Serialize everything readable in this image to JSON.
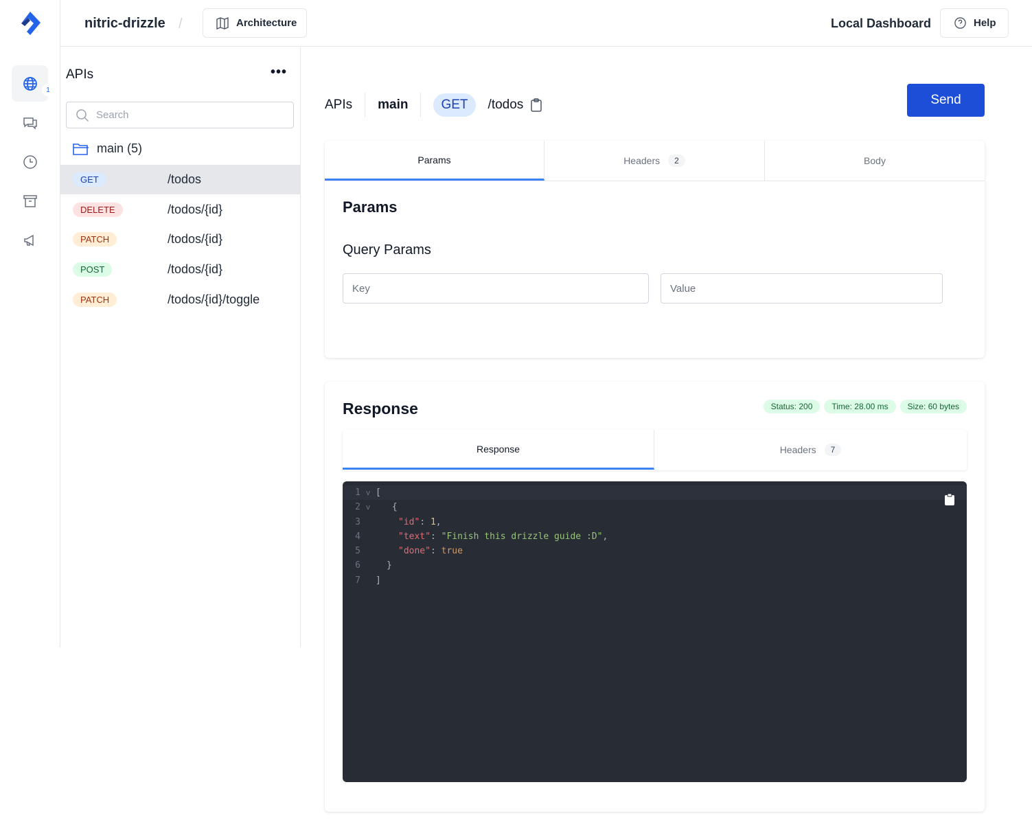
{
  "header": {
    "project": "nitric-drizzle",
    "separator": "/",
    "architecture_label": "Architecture",
    "local_dashboard": "Local Dashboard",
    "help_label": "Help"
  },
  "rail": {
    "items": [
      {
        "icon": "globe-icon",
        "badge": "1",
        "active": true
      },
      {
        "icon": "chat-icon"
      },
      {
        "icon": "clock-icon"
      },
      {
        "icon": "archive-icon"
      },
      {
        "icon": "megaphone-icon"
      }
    ]
  },
  "sidebar": {
    "title": "APIs",
    "search_placeholder": "Search",
    "group": "main (5)",
    "routes": [
      {
        "method": "GET",
        "path": "/todos",
        "bg": "#dbeafe",
        "fg": "#1e40af",
        "selected": true
      },
      {
        "method": "DELETE",
        "path": "/todos/{id}",
        "bg": "#fee2e2",
        "fg": "#991b1b"
      },
      {
        "method": "PATCH",
        "path": "/todos/{id}",
        "bg": "#ffedd5",
        "fg": "#9a3412"
      },
      {
        "method": "POST",
        "path": "/todos/{id}",
        "bg": "#dcfce7",
        "fg": "#166534"
      },
      {
        "method": "PATCH",
        "path": "/todos/{id}/toggle",
        "bg": "#ffedd5",
        "fg": "#9a3412"
      }
    ]
  },
  "request": {
    "crumb_apis": "APIs",
    "crumb_api": "main",
    "method": "GET",
    "path": "/todos",
    "send_label": "Send",
    "tabs": [
      {
        "label": "Params"
      },
      {
        "label": "Headers",
        "count": "2"
      },
      {
        "label": "Body"
      }
    ],
    "params_title": "Params",
    "query_title": "Query Params",
    "key_placeholder": "Key",
    "value_placeholder": "Value"
  },
  "response": {
    "title": "Response",
    "status": "Status: 200",
    "time": "Time: 28.00 ms",
    "size": "Size: 60 bytes",
    "tabs": [
      {
        "label": "Response"
      },
      {
        "label": "Headers",
        "count": "7"
      }
    ],
    "lines": [
      "1",
      "2",
      "3",
      "4",
      "5",
      "6",
      "7"
    ],
    "code": {
      "open_bracket": "[",
      "open_brace": "{",
      "k_id": "\"id\"",
      "v_id": "1",
      "k_text": "\"text\"",
      "v_text": "\"Finish this drizzle guide :D\"",
      "k_done": "\"done\"",
      "v_done": "true",
      "close_brace": "}",
      "close_bracket": "]"
    }
  },
  "colors": {
    "accent": "#1d4ed8",
    "editor_bg": "#282c34"
  }
}
